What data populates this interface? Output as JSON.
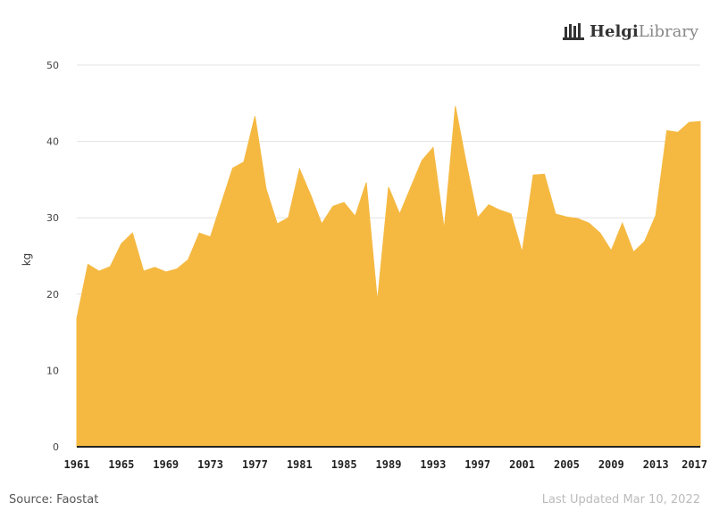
{
  "brand": {
    "name_bold": "Helgi",
    "name_light": "Library"
  },
  "footer": {
    "source": "Source: Faostat",
    "updated": "Last Updated  Mar 10, 2022"
  },
  "colors": {
    "area": "#f5b942",
    "grid": "#e3e3e3",
    "axis": "#222222",
    "tick_label": "#222222"
  },
  "chart_data": {
    "type": "area",
    "ylabel": "kg",
    "ylim": [
      0,
      50
    ],
    "yticks": [
      0,
      10,
      20,
      30,
      40,
      50
    ],
    "xlim": [
      1961,
      2017
    ],
    "xticks": [
      1961,
      1965,
      1969,
      1973,
      1977,
      1981,
      1985,
      1989,
      1993,
      1997,
      2001,
      2005,
      2009,
      2013,
      2017
    ],
    "grid": true,
    "series": [
      {
        "x": [
          1961,
          1962,
          1963,
          1964,
          1965,
          1966,
          1967,
          1968,
          1969,
          1970,
          1971,
          1972,
          1973,
          1974,
          1975,
          1976,
          1977,
          1978,
          1979,
          1980,
          1981,
          1982,
          1983,
          1984,
          1985,
          1986,
          1987,
          1988,
          1989,
          1990,
          1991,
          1992,
          1993,
          1994,
          1995,
          1996,
          1997,
          1998,
          1999,
          2000,
          2001,
          2002,
          2003,
          2004,
          2005,
          2006,
          2007,
          2008,
          2009,
          2010,
          2011,
          2012,
          2013,
          2014,
          2015,
          2016,
          2017
        ],
        "values": [
          16.8,
          23.9,
          23.0,
          23.6,
          26.6,
          28.0,
          23.0,
          23.5,
          22.9,
          23.3,
          24.5,
          28.0,
          27.5,
          32.0,
          36.5,
          37.3,
          43.3,
          33.8,
          29.2,
          30.0,
          36.4,
          33.0,
          29.2,
          31.5,
          32.0,
          30.2,
          34.6,
          19.0,
          34.0,
          30.5,
          34.0,
          37.5,
          39.2,
          28.5,
          44.6,
          37.0,
          30.0,
          31.7,
          31.0,
          30.5,
          25.5,
          35.6,
          35.7,
          30.5,
          30.1,
          29.9,
          29.3,
          28.0,
          25.7,
          29.3,
          25.5,
          26.9,
          30.3,
          41.4,
          41.2,
          42.5,
          42.6
        ]
      }
    ]
  }
}
